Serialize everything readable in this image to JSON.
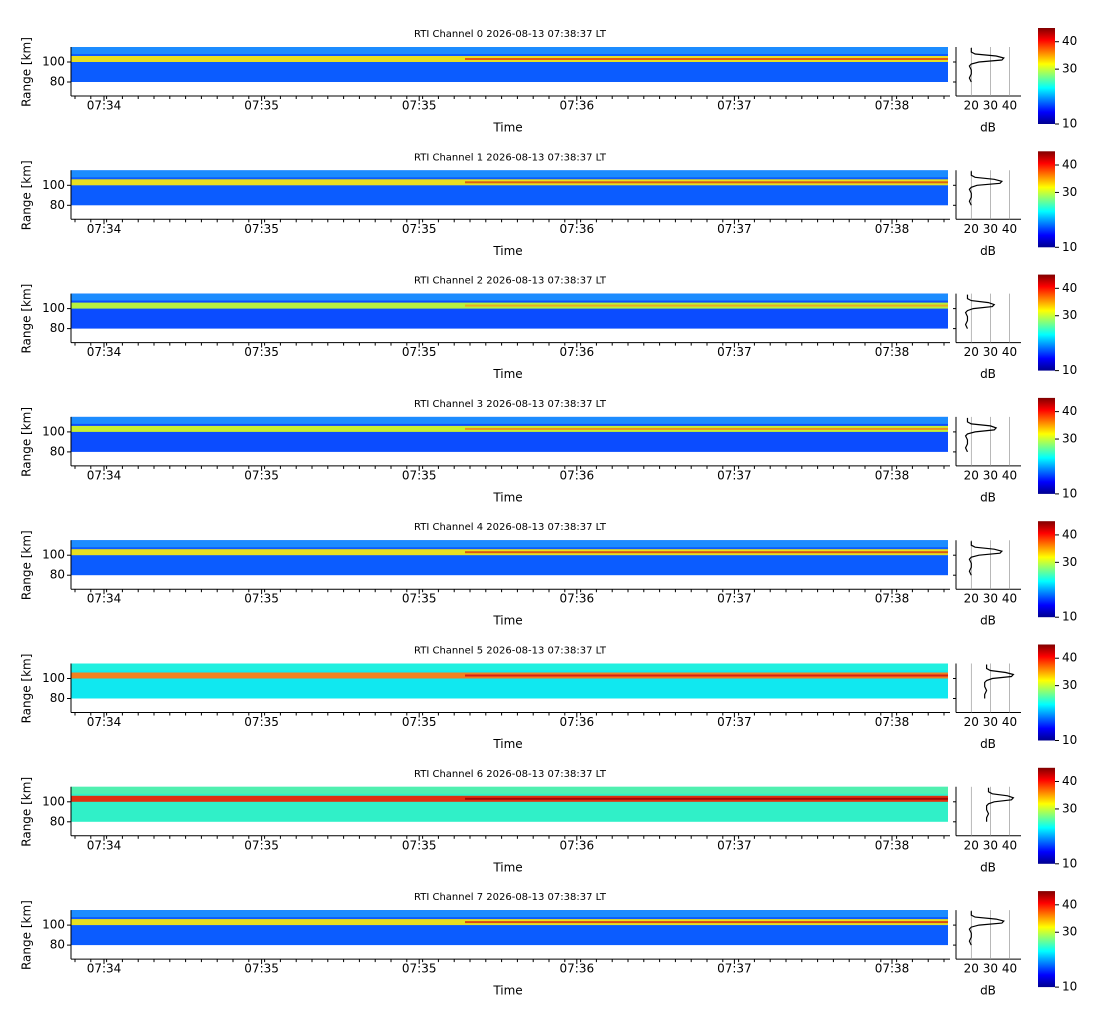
{
  "panels": [
    {
      "title": "RTI Channel 0 2026-08-13 07:38:37 LT",
      "y_label": "Range [km]",
      "x_label": "Time",
      "ylim": [
        66,
        115
      ],
      "yticks": [
        80,
        100
      ],
      "heatmap_ylim": [
        80,
        115
      ],
      "time_labels": [
        "07:34",
        "07:35",
        "07:35",
        "07:36",
        "07:37",
        "07:38"
      ],
      "colors": {
        "background": "#0b5cff",
        "top": "#1c8cff",
        "layer": "#e8e020",
        "core": "#e04010"
      },
      "profile": {
        "x_label": "dB",
        "xlim": [
          12,
          46
        ],
        "xticks": [
          20,
          30,
          40
        ],
        "ranges": [
          80,
          84,
          88,
          92,
          96,
          98,
          100,
          102,
          104,
          106,
          108,
          110,
          114
        ],
        "values": [
          20,
          19,
          20,
          20,
          19,
          20,
          24,
          36,
          37,
          33,
          22,
          20,
          20
        ]
      },
      "colorbar": {
        "clim": [
          10,
          45
        ],
        "ticks": [
          10,
          30,
          40
        ]
      }
    },
    {
      "title": "RTI Channel 1 2026-08-13 07:38:37 LT",
      "y_label": "Range [km]",
      "x_label": "Time",
      "ylim": [
        66,
        115
      ],
      "yticks": [
        80,
        100
      ],
      "heatmap_ylim": [
        80,
        115
      ],
      "time_labels": [
        "07:34",
        "07:35",
        "07:35",
        "07:36",
        "07:37",
        "07:38"
      ],
      "colors": {
        "background": "#0b5cff",
        "top": "#1c8cff",
        "layer": "#e8e020",
        "core": "#d84a10"
      },
      "profile": {
        "x_label": "dB",
        "xlim": [
          12,
          46
        ],
        "xticks": [
          20,
          30,
          40
        ],
        "ranges": [
          80,
          84,
          88,
          92,
          96,
          98,
          100,
          102,
          104,
          106,
          108,
          110,
          114
        ],
        "values": [
          20,
          19,
          20,
          20,
          19,
          20,
          23,
          35,
          36,
          32,
          22,
          20,
          20
        ]
      },
      "colorbar": {
        "clim": [
          10,
          45
        ],
        "ticks": [
          10,
          30,
          40
        ]
      }
    },
    {
      "title": "RTI Channel 2 2026-08-13 07:38:37 LT",
      "y_label": "Range [km]",
      "x_label": "Time",
      "ylim": [
        66,
        115
      ],
      "yticks": [
        80,
        100
      ],
      "heatmap_ylim": [
        80,
        115
      ],
      "time_labels": [
        "07:34",
        "07:35",
        "07:35",
        "07:36",
        "07:37",
        "07:38"
      ],
      "colors": {
        "background": "#0b4cff",
        "top": "#1c8cff",
        "layer": "#b8f040",
        "core": "#f0a020"
      },
      "profile": {
        "x_label": "dB",
        "xlim": [
          12,
          46
        ],
        "xticks": [
          20,
          30,
          40
        ],
        "ranges": [
          80,
          84,
          88,
          92,
          96,
          98,
          100,
          102,
          104,
          106,
          108,
          110,
          114
        ],
        "values": [
          18,
          17,
          18,
          18,
          17,
          18,
          21,
          31,
          32,
          29,
          20,
          18,
          18
        ]
      },
      "colorbar": {
        "clim": [
          10,
          45
        ],
        "ticks": [
          10,
          30,
          40
        ]
      }
    },
    {
      "title": "RTI Channel 3 2026-08-13 07:38:37 LT",
      "y_label": "Range [km]",
      "x_label": "Time",
      "ylim": [
        66,
        115
      ],
      "yticks": [
        80,
        100
      ],
      "heatmap_ylim": [
        80,
        115
      ],
      "time_labels": [
        "07:34",
        "07:35",
        "07:35",
        "07:36",
        "07:37",
        "07:38"
      ],
      "colors": {
        "background": "#0b4cff",
        "top": "#1c8cff",
        "layer": "#c8f030",
        "core": "#f08020"
      },
      "profile": {
        "x_label": "dB",
        "xlim": [
          12,
          46
        ],
        "xticks": [
          20,
          30,
          40
        ],
        "ranges": [
          80,
          84,
          88,
          92,
          96,
          98,
          100,
          102,
          104,
          106,
          108,
          110,
          114
        ],
        "values": [
          18,
          17,
          18,
          18,
          17,
          18,
          22,
          32,
          33,
          30,
          20,
          18,
          18
        ]
      },
      "colorbar": {
        "clim": [
          10,
          45
        ],
        "ticks": [
          10,
          30,
          40
        ]
      }
    },
    {
      "title": "RTI Channel 4 2026-08-13 07:38:37 LT",
      "y_label": "Range [km]",
      "x_label": "Time",
      "ylim": [
        66,
        115
      ],
      "yticks": [
        80,
        100
      ],
      "heatmap_ylim": [
        80,
        115
      ],
      "time_labels": [
        "07:34",
        "07:35",
        "07:35",
        "07:36",
        "07:37",
        "07:38"
      ],
      "colors": {
        "background": "#0b5cff",
        "top": "#1c8cff",
        "layer": "#e8e020",
        "core": "#d84010"
      },
      "profile": {
        "x_label": "dB",
        "xlim": [
          12,
          46
        ],
        "xticks": [
          20,
          30,
          40
        ],
        "ranges": [
          80,
          84,
          88,
          92,
          96,
          98,
          100,
          102,
          104,
          106,
          108,
          110,
          114
        ],
        "values": [
          20,
          19,
          20,
          20,
          19,
          20,
          24,
          35,
          36,
          32,
          22,
          20,
          20
        ]
      },
      "colorbar": {
        "clim": [
          10,
          45
        ],
        "ticks": [
          10,
          30,
          40
        ]
      }
    },
    {
      "title": "RTI Channel 5 2026-08-13 07:38:37 LT",
      "y_label": "Range [km]",
      "x_label": "Time",
      "ylim": [
        66,
        115
      ],
      "yticks": [
        80,
        100
      ],
      "heatmap_ylim": [
        80,
        115
      ],
      "time_labels": [
        "07:34",
        "07:35",
        "07:35",
        "07:36",
        "07:37",
        "07:38"
      ],
      "colors": {
        "background": "#10e8f0",
        "top": "#20f0e0",
        "layer": "#f08020",
        "core": "#d01010"
      },
      "profile": {
        "x_label": "dB",
        "xlim": [
          12,
          46
        ],
        "xticks": [
          20,
          30,
          40
        ],
        "ranges": [
          80,
          84,
          88,
          92,
          96,
          98,
          100,
          102,
          104,
          106,
          108,
          110,
          114
        ],
        "values": [
          27,
          27,
          28,
          27,
          27,
          28,
          31,
          41,
          42,
          38,
          30,
          28,
          28
        ]
      },
      "colorbar": {
        "clim": [
          10,
          45
        ],
        "ticks": [
          10,
          30,
          40
        ]
      }
    },
    {
      "title": "RTI Channel 6 2026-08-13 07:38:37 LT",
      "y_label": "Range [km]",
      "x_label": "Time",
      "ylim": [
        66,
        115
      ],
      "yticks": [
        80,
        100
      ],
      "heatmap_ylim": [
        80,
        115
      ],
      "time_labels": [
        "07:34",
        "07:35",
        "07:35",
        "07:36",
        "07:37",
        "07:38"
      ],
      "colors": {
        "background": "#30f0c8",
        "top": "#50f0b0",
        "layer": "#e03010",
        "core": "#900000"
      },
      "profile": {
        "x_label": "dB",
        "xlim": [
          12,
          46
        ],
        "xticks": [
          20,
          30,
          40
        ],
        "ranges": [
          80,
          84,
          88,
          92,
          96,
          98,
          100,
          102,
          104,
          106,
          108,
          110,
          114
        ],
        "values": [
          28,
          28,
          29,
          28,
          28,
          29,
          32,
          41,
          42,
          39,
          31,
          29,
          29
        ]
      },
      "colorbar": {
        "clim": [
          10,
          45
        ],
        "ticks": [
          10,
          30,
          40
        ]
      }
    },
    {
      "title": "RTI Channel 7 2026-08-13 07:38:37 LT",
      "y_label": "Range [km]",
      "x_label": "Time",
      "ylim": [
        66,
        115
      ],
      "yticks": [
        80,
        100
      ],
      "heatmap_ylim": [
        80,
        115
      ],
      "time_labels": [
        "07:34",
        "07:35",
        "07:35",
        "07:36",
        "07:37",
        "07:38"
      ],
      "colors": {
        "background": "#0b5cff",
        "top": "#1c8cff",
        "layer": "#e8e020",
        "core": "#d83010"
      },
      "profile": {
        "x_label": "dB",
        "xlim": [
          12,
          46
        ],
        "xticks": [
          20,
          30,
          40
        ],
        "ranges": [
          80,
          84,
          88,
          92,
          96,
          98,
          100,
          102,
          104,
          106,
          108,
          110,
          114
        ],
        "values": [
          20,
          19,
          20,
          20,
          19,
          20,
          24,
          36,
          37,
          33,
          22,
          20,
          20
        ]
      },
      "colorbar": {
        "clim": [
          10,
          45
        ],
        "ticks": [
          10,
          30,
          40
        ]
      }
    }
  ]
}
